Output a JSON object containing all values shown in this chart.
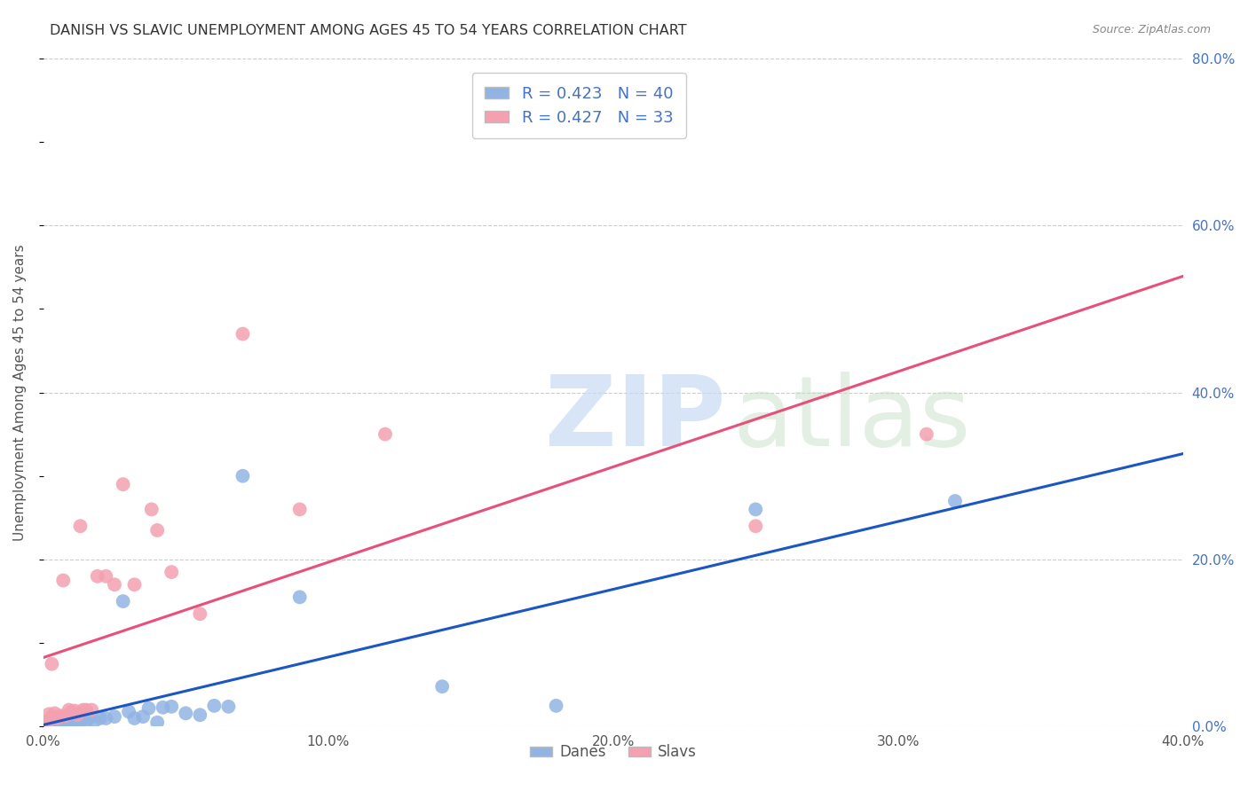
{
  "title": "DANISH VS SLAVIC UNEMPLOYMENT AMONG AGES 45 TO 54 YEARS CORRELATION CHART",
  "source": "Source: ZipAtlas.com",
  "ylabel": "Unemployment Among Ages 45 to 54 years",
  "xlim": [
    0.0,
    0.4
  ],
  "ylim": [
    0.0,
    0.8
  ],
  "xticks": [
    0.0,
    0.1,
    0.2,
    0.3,
    0.4
  ],
  "yticks": [
    0.0,
    0.2,
    0.4,
    0.6,
    0.8
  ],
  "danes_R": 0.423,
  "danes_N": 40,
  "slavs_R": 0.427,
  "slavs_N": 33,
  "dane_color": "#92b4e3",
  "slav_color": "#f4a0b0",
  "dane_line_color": "#1a56c4",
  "slav_line_color": "#e8507a",
  "legend_label_dane": "Danes",
  "legend_label_slav": "Slavs",
  "background_color": "#ffffff",
  "grid_color": "#cccccc",
  "title_color": "#333333",
  "source_color": "#888888",
  "label_color": "#4472c4",
  "danes_x": [
    0.001,
    0.002,
    0.003,
    0.003,
    0.004,
    0.005,
    0.005,
    0.006,
    0.007,
    0.007,
    0.008,
    0.01,
    0.01,
    0.011,
    0.012,
    0.013,
    0.015,
    0.016,
    0.018,
    0.02,
    0.022,
    0.025,
    0.028,
    0.03,
    0.032,
    0.035,
    0.037,
    0.04,
    0.042,
    0.045,
    0.05,
    0.055,
    0.06,
    0.065,
    0.07,
    0.09,
    0.14,
    0.18,
    0.25,
    0.32
  ],
  "danes_y": [
    0.005,
    0.003,
    0.004,
    0.006,
    0.005,
    0.003,
    0.007,
    0.004,
    0.005,
    0.006,
    0.008,
    0.004,
    0.006,
    0.003,
    0.005,
    0.006,
    0.007,
    0.01,
    0.007,
    0.01,
    0.01,
    0.012,
    0.15,
    0.018,
    0.01,
    0.012,
    0.022,
    0.005,
    0.023,
    0.024,
    0.016,
    0.014,
    0.025,
    0.024,
    0.3,
    0.155,
    0.048,
    0.025,
    0.26,
    0.27
  ],
  "slavs_x": [
    0.001,
    0.002,
    0.002,
    0.003,
    0.003,
    0.004,
    0.005,
    0.005,
    0.006,
    0.007,
    0.008,
    0.009,
    0.01,
    0.011,
    0.012,
    0.013,
    0.014,
    0.015,
    0.017,
    0.019,
    0.022,
    0.025,
    0.028,
    0.032,
    0.038,
    0.04,
    0.045,
    0.055,
    0.07,
    0.09,
    0.12,
    0.25,
    0.31
  ],
  "slavs_y": [
    0.005,
    0.008,
    0.015,
    0.012,
    0.075,
    0.016,
    0.01,
    0.012,
    0.013,
    0.175,
    0.013,
    0.02,
    0.018,
    0.019,
    0.014,
    0.24,
    0.02,
    0.02,
    0.02,
    0.18,
    0.18,
    0.17,
    0.29,
    0.17,
    0.26,
    0.235,
    0.185,
    0.135,
    0.47,
    0.26,
    0.35,
    0.24,
    0.35
  ]
}
